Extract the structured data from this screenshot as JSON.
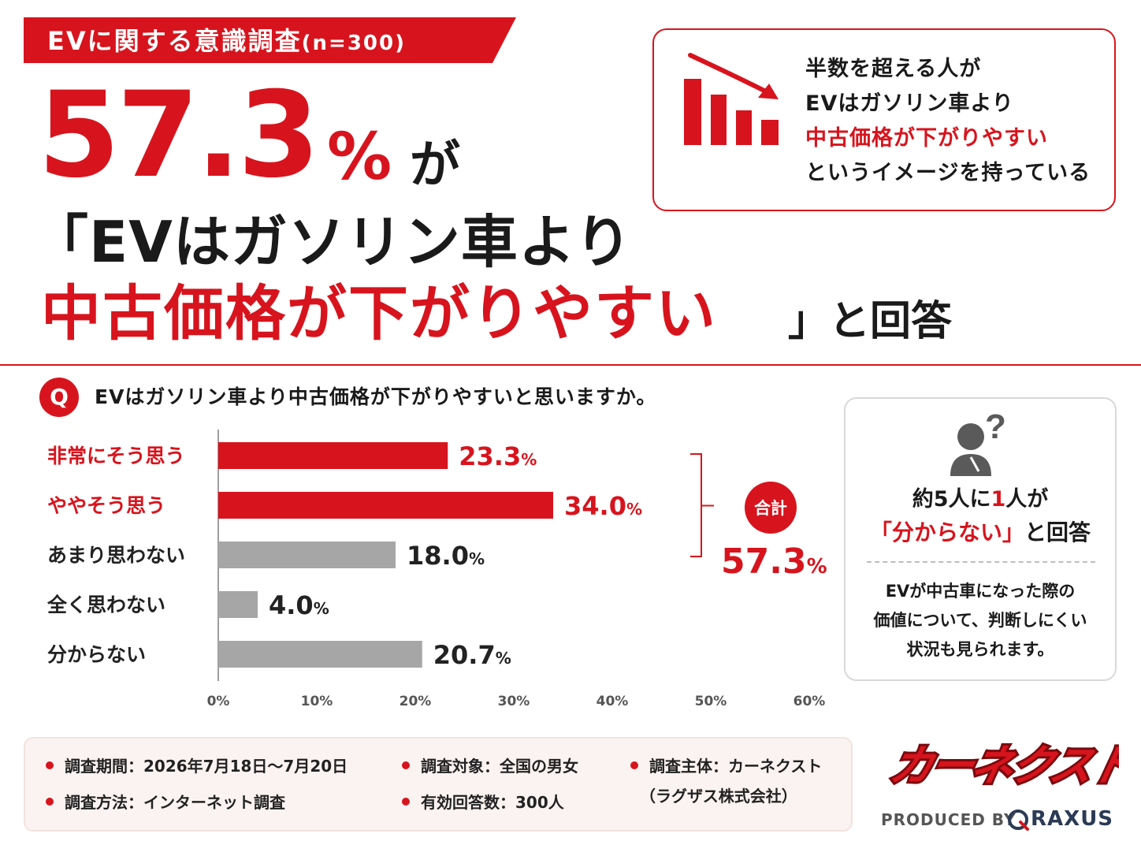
{
  "survey": {
    "title": "EVに関する意識調査",
    "sample": "(n=300)"
  },
  "headline": {
    "big_number": "57.3",
    "big_unit": "%",
    "particle": "が",
    "line1": "「EVはガソリン車より",
    "line2": "中古価格が下がりやすい",
    "line3": "」と回答"
  },
  "callout": {
    "line1": "半数を超える人が",
    "line2": "EVはガソリン車より",
    "line3": "中古価格が下がりやすい",
    "line4": "というイメージを持っている"
  },
  "question": {
    "badge": "Q",
    "text": "EVはガソリン車より中古価格が下がりやすいと思いますか。"
  },
  "chart_data": {
    "type": "bar",
    "orientation": "horizontal",
    "categories": [
      "非常にそう思う",
      "ややそう思う",
      "あまり思わない",
      "全く思わない",
      "分からない"
    ],
    "values": [
      23.3,
      34.0,
      18.0,
      4.0,
      20.7
    ],
    "value_labels": [
      "23.3",
      "34.0",
      "18.0",
      "4.0",
      "20.7"
    ],
    "value_unit": "%",
    "highlight": [
      true,
      true,
      false,
      false,
      false
    ],
    "xlim": [
      0,
      60
    ],
    "xticks": [
      "0%",
      "10%",
      "20%",
      "30%",
      "40%",
      "50%",
      "60%"
    ],
    "total": {
      "badge": "合計",
      "value": "57.3",
      "unit": "%"
    },
    "colors": {
      "highlight": "#d7141d",
      "other": "#a6a6a6",
      "axis": "#9e9e9e"
    }
  },
  "info": {
    "line1_a": "約",
    "line1_b": "5",
    "line1_c": "人に",
    "line1_d": "1",
    "line1_e": "人が",
    "line2_a": "「分からない」",
    "line2_b": "と回答",
    "note1": "EVが中古車になった際の",
    "note2": "価値について、判断しにくい",
    "note3": "状況も見られます。"
  },
  "footer": {
    "period": "調査期間：2026年7月18日～7月20日",
    "method": "調査方法：インターネット調査",
    "target": "調査対象：全国の男女",
    "valid": "有効回答数：300人",
    "organizer": "調査主体：カーネクスト",
    "organizer_company": "（ラグザス株式会社）"
  },
  "brand": {
    "logo": "カーネクスト",
    "produced_by": "PRODUCED BY",
    "company": "RAXUS"
  },
  "colors": {
    "accent": "#d7141d",
    "text": "#1a1a1a",
    "muted": "#a6a6a6"
  }
}
